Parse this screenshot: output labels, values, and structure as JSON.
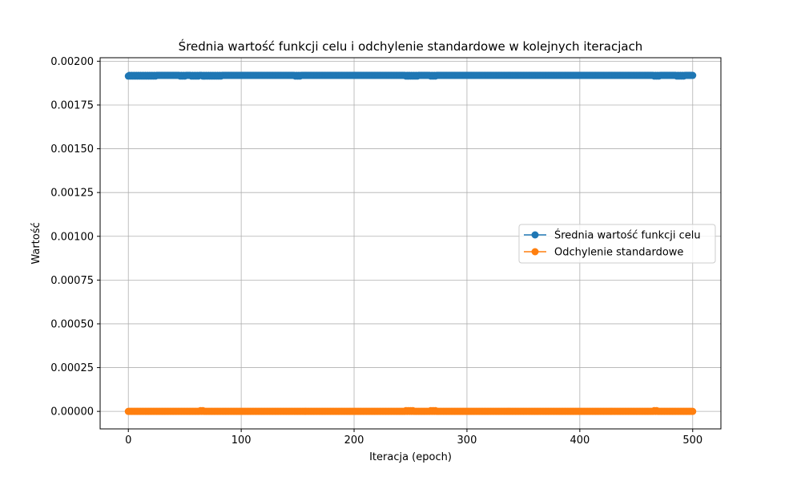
{
  "chart_data": {
    "type": "line",
    "title": "Średnia wartość funkcji celu i odchylenie standardowe w kolejnych iteracjach",
    "xlabel": "Iteracja (epoch)",
    "ylabel": "Wartość",
    "xlim": [
      -25,
      525
    ],
    "ylim": [
      -0.0001,
      0.00202
    ],
    "xticks": [
      0,
      100,
      200,
      300,
      400,
      500
    ],
    "xtick_labels": [
      "0",
      "100",
      "200",
      "300",
      "400",
      "500"
    ],
    "yticks": [
      0.0,
      0.00025,
      0.0005,
      0.00075,
      0.001,
      0.00125,
      0.0015,
      0.00175,
      0.002
    ],
    "ytick_labels": [
      "0.00000",
      "0.00025",
      "0.00050",
      "0.00075",
      "0.00100",
      "0.00125",
      "0.00150",
      "0.00175",
      "0.00200"
    ],
    "grid": true,
    "legend_position": "center-right",
    "x_range": [
      0,
      500
    ],
    "series": [
      {
        "name": "Średnia wartość funkcji celu",
        "color": "#1f77b4",
        "marker": "circle",
        "base_value": 0.001919,
        "dips": [
          {
            "x_range": [
              0,
              25
            ],
            "value": 0.001915
          },
          {
            "x_range": [
              46,
              50
            ],
            "value": 0.001915
          },
          {
            "x_range": [
              56,
              62
            ],
            "value": 0.001915
          },
          {
            "x_range": [
              66,
              70
            ],
            "value": 0.001915
          },
          {
            "x_range": [
              72,
              82
            ],
            "value": 0.001915
          },
          {
            "x_range": [
              148,
              152
            ],
            "value": 0.001915
          },
          {
            "x_range": [
              246,
              256
            ],
            "value": 0.001915
          },
          {
            "x_range": [
              268,
              272
            ],
            "value": 0.001915
          },
          {
            "x_range": [
              466,
              470
            ],
            "value": 0.001915
          },
          {
            "x_range": [
              486,
              492
            ],
            "value": 0.001915
          }
        ]
      },
      {
        "name": "Odchylenie standardowe",
        "color": "#ff7f0e",
        "marker": "circle",
        "base_value": 0.0,
        "bumps": [
          {
            "x_range": [
              63,
              66
            ],
            "value": 4e-06
          },
          {
            "x_range": [
              246,
              252
            ],
            "value": 4e-06
          },
          {
            "x_range": [
              268,
              272
            ],
            "value": 4e-06
          },
          {
            "x_range": [
              466,
              469
            ],
            "value": 4e-06
          }
        ]
      }
    ]
  }
}
